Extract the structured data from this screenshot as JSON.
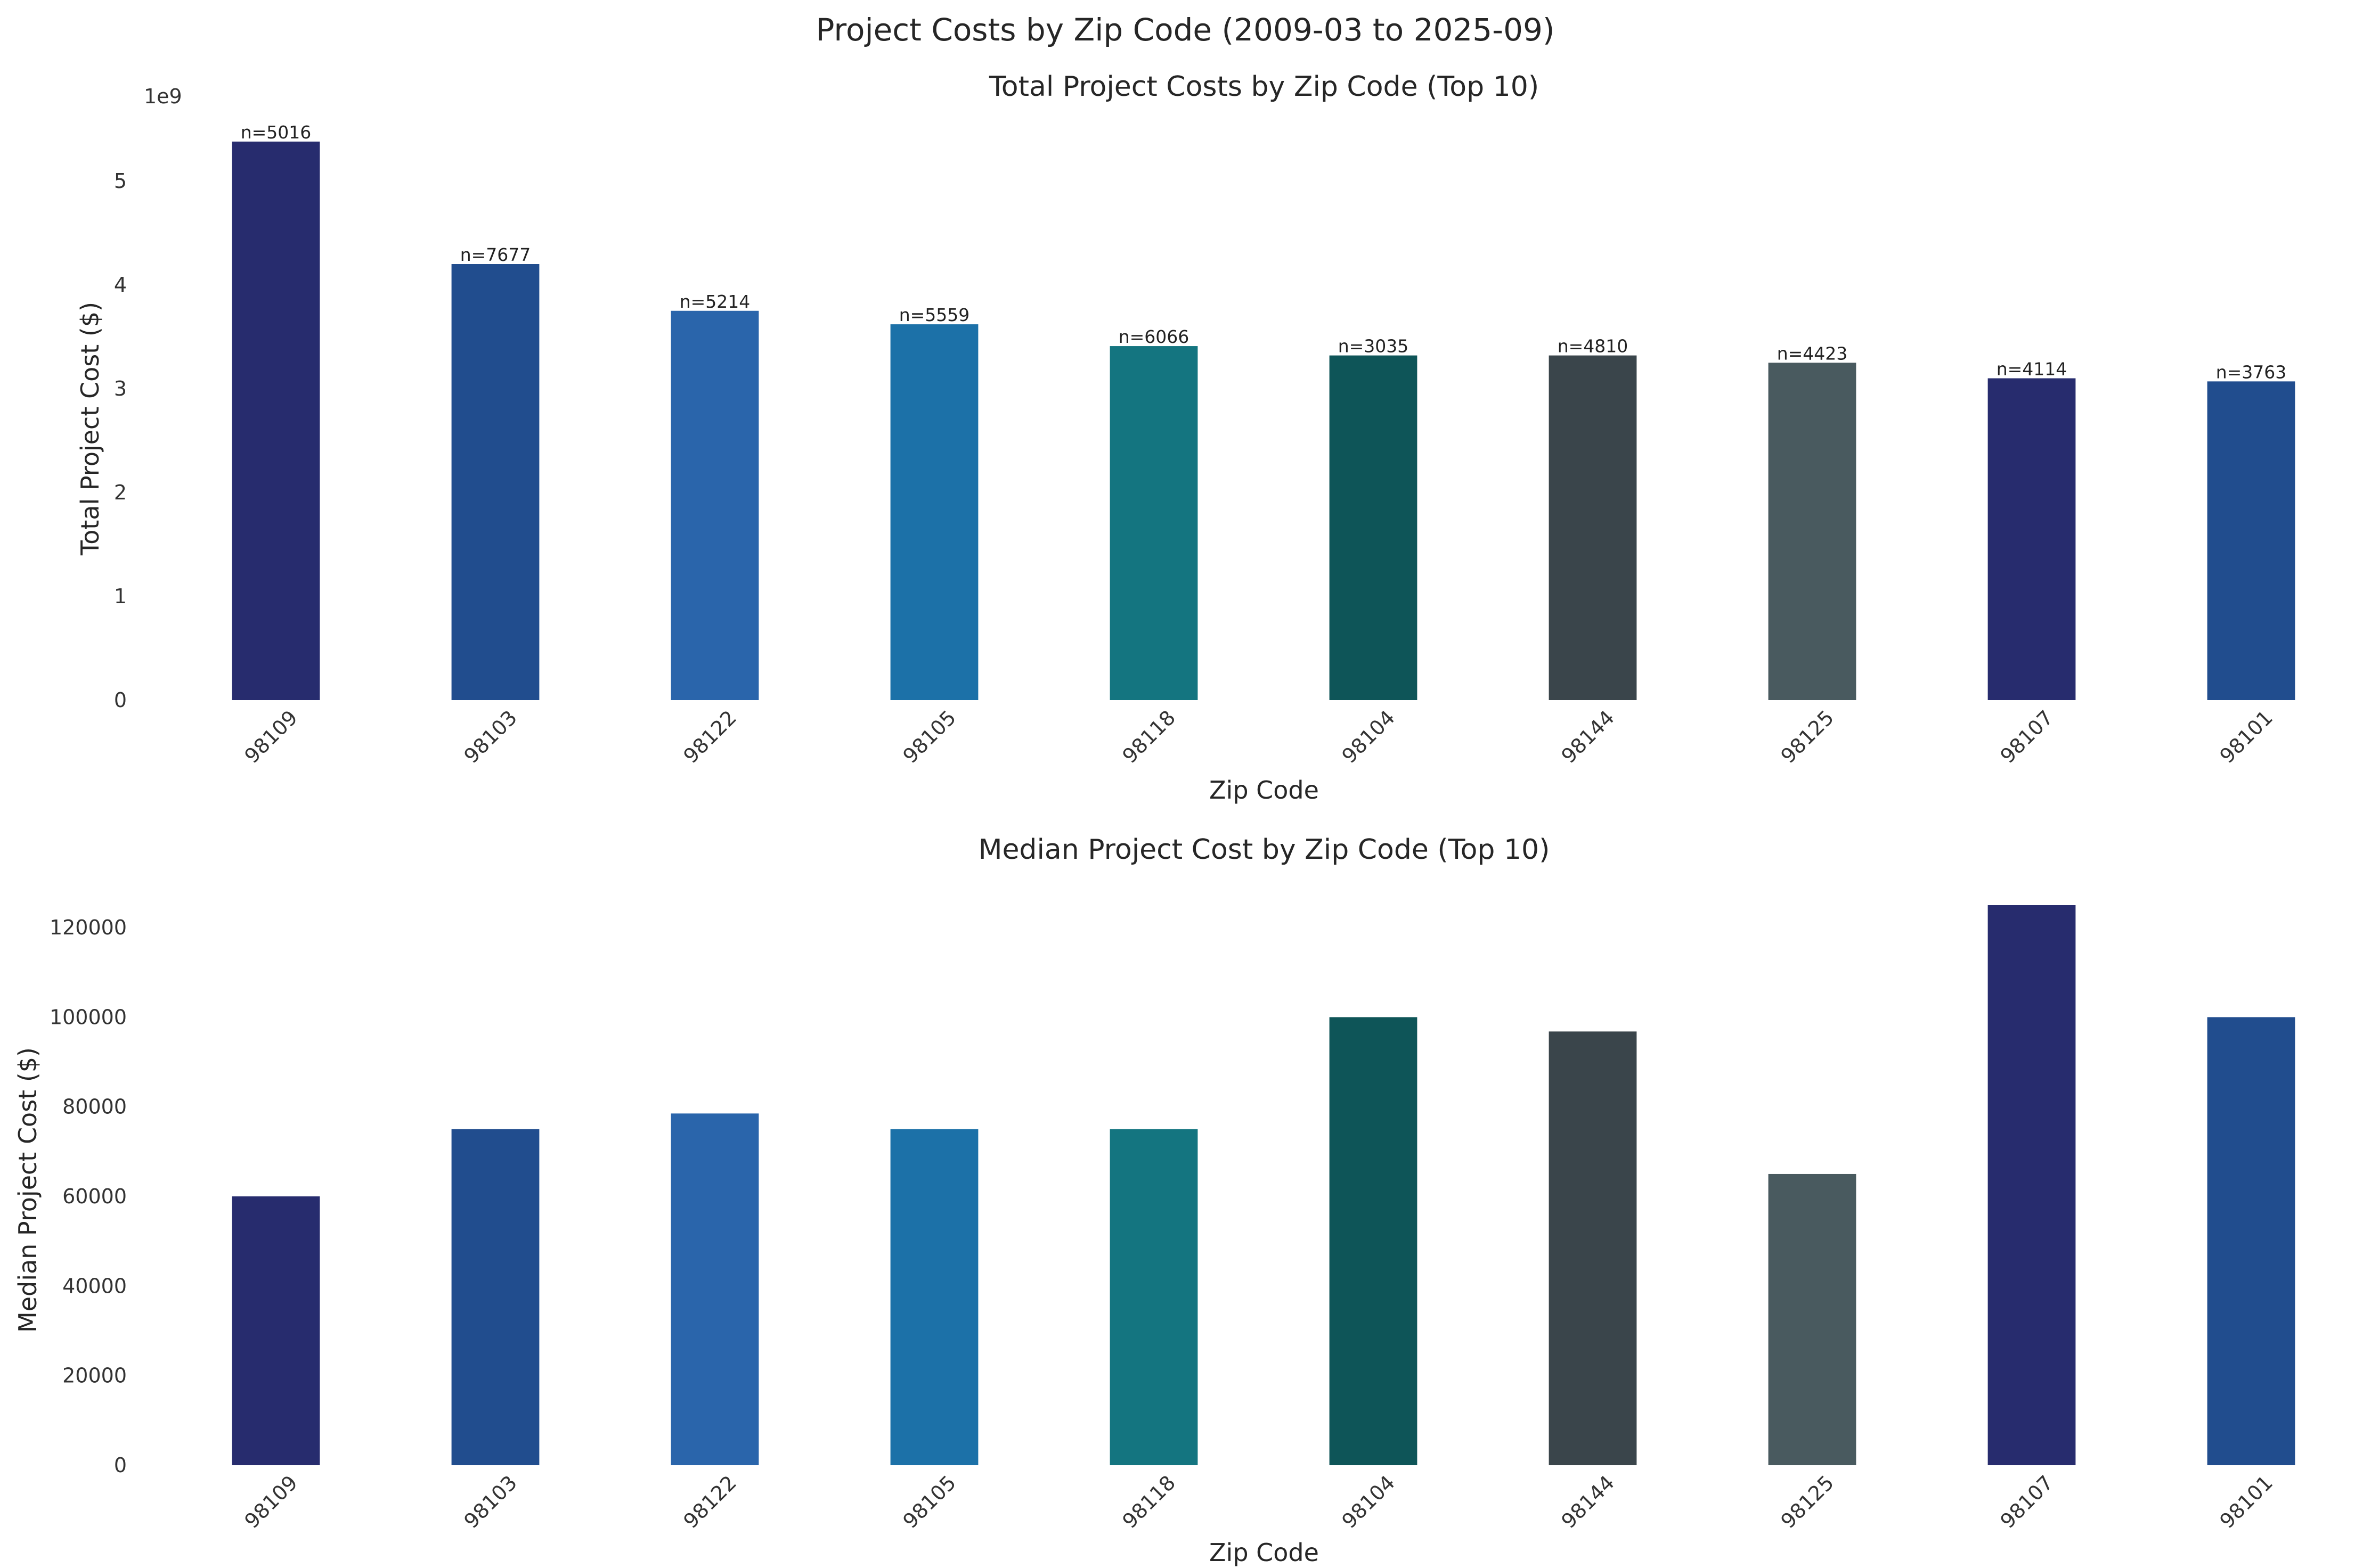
{
  "figure_title": "Project Costs by Zip Code (2009-03 to 2025-09)",
  "chart_data": [
    {
      "type": "bar",
      "title": "Total Project Costs by Zip Code (Top 10)",
      "xlabel": "Zip Code",
      "ylabel": "Total Project Cost ($)",
      "y_offset_text": "1e9",
      "categories": [
        "98109",
        "98103",
        "98122",
        "98105",
        "98118",
        "98104",
        "98144",
        "98125",
        "98107",
        "98101"
      ],
      "values": [
        5380000000,
        4200000000,
        3750000000,
        3620000000,
        3410000000,
        3320000000,
        3320000000,
        3250000000,
        3100000000,
        3070000000
      ],
      "bar_labels": [
        "n=5016",
        "n=7677",
        "n=5214",
        "n=5559",
        "n=6066",
        "n=3035",
        "n=4810",
        "n=4423",
        "n=4114",
        "n=3763"
      ],
      "ylim": [
        0,
        5400000000
      ],
      "yticks": [
        0,
        1000000000,
        2000000000,
        3000000000,
        4000000000,
        5000000000
      ],
      "ytick_labels": [
        "0",
        "1",
        "2",
        "3",
        "4",
        "5"
      ],
      "grid": false,
      "bar_colors": [
        "#272c6e",
        "#214d8e",
        "#2a65ab",
        "#1c71a8",
        "#147580",
        "#0e5558",
        "#3a454b",
        "#495a5f",
        "#272c6e",
        "#214d8e"
      ]
    },
    {
      "type": "bar",
      "title": "Median Project Cost by Zip Code (Top 10)",
      "xlabel": "Zip Code",
      "ylabel": "Median Project Cost ($)",
      "categories": [
        "98109",
        "98103",
        "98122",
        "98105",
        "98118",
        "98104",
        "98144",
        "98125",
        "98107",
        "98101"
      ],
      "values": [
        60000,
        75000,
        78500,
        75000,
        75000,
        100000,
        96800,
        65000,
        125000,
        100000
      ],
      "ylim": [
        0,
        125000
      ],
      "yticks": [
        0,
        20000,
        40000,
        60000,
        80000,
        100000,
        120000
      ],
      "ytick_labels": [
        "0",
        "20000",
        "40000",
        "60000",
        "80000",
        "100000",
        "120000"
      ],
      "grid": false,
      "bar_colors": [
        "#272c6e",
        "#214d8e",
        "#2a65ab",
        "#1c71a8",
        "#147580",
        "#0e5558",
        "#3a454b",
        "#495a5f",
        "#272c6e",
        "#214d8e"
      ]
    }
  ]
}
